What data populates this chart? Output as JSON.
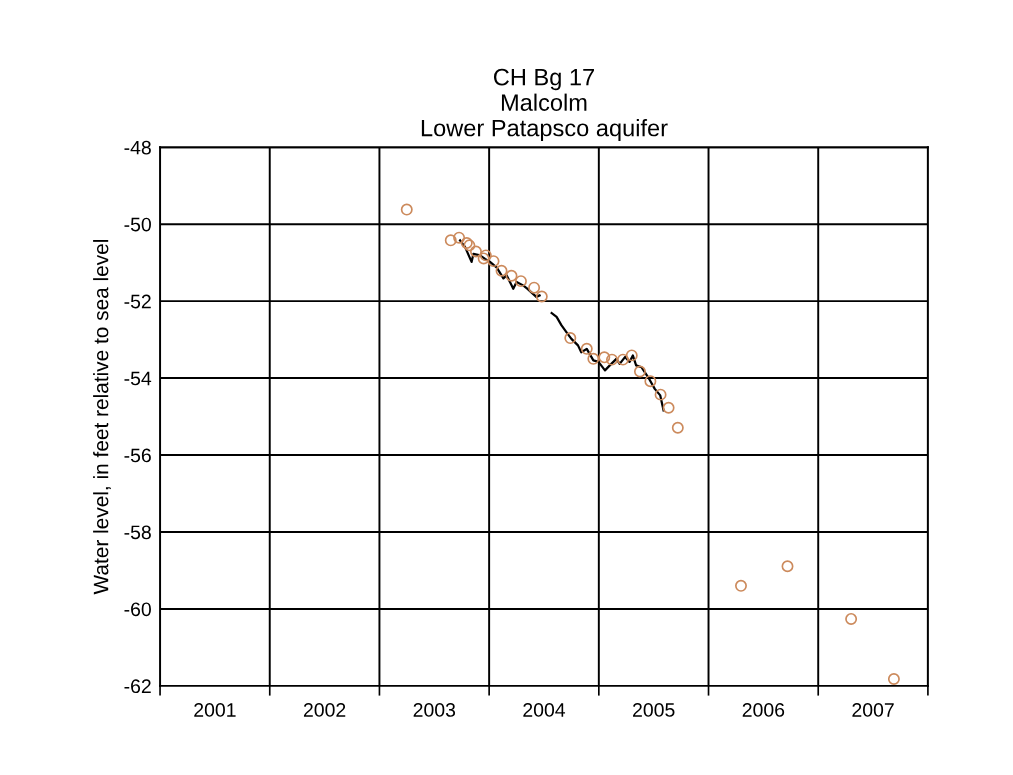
{
  "chart_data": {
    "type": "scatter",
    "title": "CH Bg 17\nMalcolm\nLower Patapsco aquifer",
    "ylabel": "Water level, in feet relative to sea level",
    "xlim": [
      2001,
      2008
    ],
    "ylim": [
      -62,
      -48
    ],
    "yticks": [
      -62,
      -60,
      -58,
      -56,
      -54,
      -52,
      -50,
      -48
    ],
    "xticks": [
      {
        "value": 2001,
        "label": null
      },
      {
        "value": 2002,
        "label": null
      },
      {
        "value": 2003,
        "label": null
      },
      {
        "value": 2004,
        "label": null
      },
      {
        "value": 2005,
        "label": null
      },
      {
        "value": 2006,
        "label": null
      },
      {
        "value": 2007,
        "label": null
      },
      {
        "value": 2008,
        "label": null
      },
      {
        "value": 2001.5,
        "label": "2001"
      },
      {
        "value": 2002.5,
        "label": "2002"
      },
      {
        "value": 2003.5,
        "label": "2003"
      },
      {
        "value": 2004.5,
        "label": "2004"
      },
      {
        "value": 2005.5,
        "label": "2005"
      },
      {
        "value": 2006.5,
        "label": "2006"
      },
      {
        "value": 2007.5,
        "label": "2007"
      }
    ],
    "grid": true,
    "legend": false,
    "series": [
      {
        "type": "line",
        "color": "#000000",
        "marker": "none",
        "line_style": "solid",
        "x": [
          2003.735,
          2003.78,
          2003.8,
          2003.84,
          2003.857,
          2003.917,
          2003.963,
          2004.008,
          2004.07,
          2004.13,
          2004.16,
          2004.22,
          2004.25,
          2004.31,
          2004.35,
          2004.43,
          2004.46,
          2004.52,
          2004.57,
          2004.615,
          2004.66,
          2004.706,
          2004.75,
          2004.81,
          2004.84,
          2004.89,
          2004.95,
          2004.997,
          2005.056,
          2005.1,
          2005.16,
          2005.19,
          2005.24,
          2005.28,
          2005.31,
          2005.34,
          2005.39,
          2005.45,
          2005.51,
          2005.56,
          2005.59
        ],
        "values": [
          -50.42,
          -50.59,
          -50.72,
          -50.98,
          -50.77,
          -50.81,
          -50.9,
          -50.98,
          -51.13,
          -51.41,
          -51.33,
          -51.68,
          -51.5,
          -51.59,
          -51.68,
          -51.89,
          -51.85,
          null,
          -52.31,
          -52.41,
          -52.63,
          -52.81,
          -52.98,
          -53.15,
          -53.33,
          -53.24,
          -53.54,
          -53.58,
          -53.8,
          -53.67,
          -53.5,
          -53.63,
          -53.45,
          -53.58,
          -53.41,
          -53.67,
          -53.72,
          -53.98,
          -54.28,
          -54.45,
          -54.84
        ]
      },
      {
        "color": "#cc8a5c",
        "marker": "circle",
        "x": [
          2003.249,
          2003.65,
          2003.726,
          2003.796,
          2003.82,
          2003.88,
          2003.95,
          2003.97,
          2004.04,
          2004.113,
          2004.204,
          2004.29,
          2004.41,
          2004.48,
          2004.74,
          2004.89,
          2004.95,
          2005.05,
          2005.12,
          2005.22,
          2005.3,
          2005.375,
          2005.47,
          2005.563,
          2005.636,
          2005.72,
          2006.296,
          2006.72,
          2007.3,
          2007.69
        ],
        "values": [
          -49.62,
          -50.42,
          -50.35,
          -50.49,
          -50.55,
          -50.71,
          -50.89,
          -50.81,
          -50.96,
          -51.21,
          -51.34,
          -51.48,
          -51.65,
          -51.88,
          -52.96,
          -53.24,
          -53.5,
          -53.46,
          -53.52,
          -53.52,
          -53.41,
          -53.83,
          -54.08,
          -54.43,
          -54.77,
          -55.29,
          -59.4,
          -58.89,
          -60.26,
          -61.82
        ]
      }
    ]
  }
}
